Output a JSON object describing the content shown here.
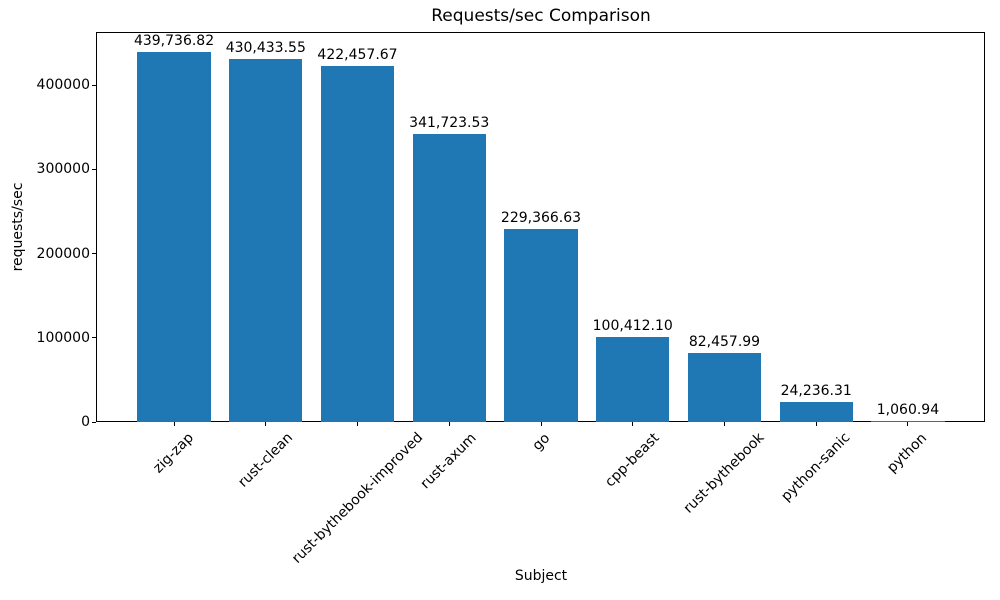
{
  "chart_data": {
    "type": "bar",
    "title": "Requests/sec Comparison",
    "xlabel": "Subject",
    "ylabel": "requests/sec",
    "categories": [
      "zig-zap",
      "rust-clean",
      "rust-bythebook-improved",
      "rust-axum",
      "go",
      "cpp-beast",
      "rust-bythebook",
      "python-sanic",
      "python"
    ],
    "values": [
      439736.82,
      430433.55,
      422457.67,
      341723.53,
      229366.63,
      100412.1,
      82457.99,
      24236.31,
      1060.94
    ],
    "value_labels": [
      "439,736.82",
      "430,433.55",
      "422,457.67",
      "341,723.53",
      "229,366.63",
      "100,412.10",
      "82,457.99",
      "24,236.31",
      "1,060.94"
    ],
    "yticks": [
      0,
      100000,
      200000,
      300000,
      400000
    ],
    "ylim": [
      0,
      461723.66
    ],
    "bar_color": "#1f77b4",
    "grid": false,
    "legend": "none"
  }
}
